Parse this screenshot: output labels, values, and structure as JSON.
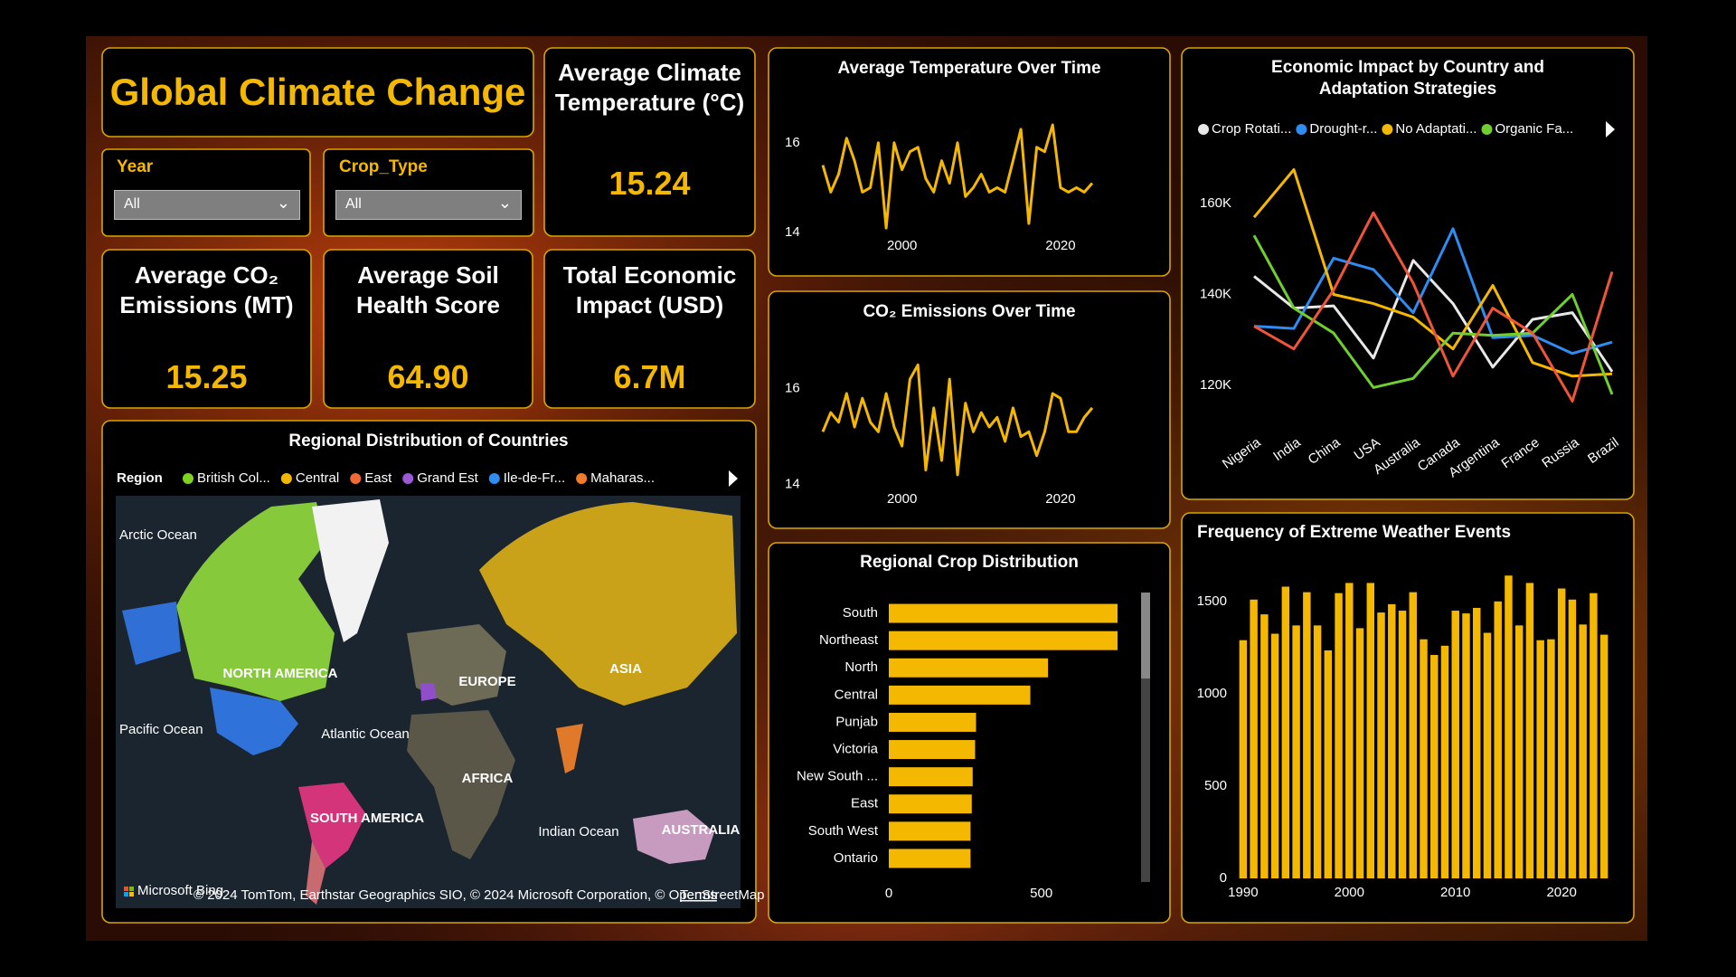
{
  "dashboard": {
    "title": "Global Climate Change",
    "slicers": [
      {
        "label": "Year",
        "value": "All"
      },
      {
        "label": "Crop_Type",
        "value": "All"
      }
    ],
    "cards": [
      {
        "title": "Average Climate Temperature (°C)",
        "value": "15.24"
      },
      {
        "title": "Average CO₂ Emissions (MT)",
        "value": "15.25"
      },
      {
        "title": "Average Soil Health Score",
        "value": "64.90"
      },
      {
        "title": "Total Economic Impact (USD)",
        "value": "6.7M"
      }
    ],
    "map": {
      "title": "Regional Distribution of Countries",
      "legend_title": "Region",
      "legend": [
        {
          "name": "British Col...",
          "color": "#7ed321"
        },
        {
          "name": "Central",
          "color": "#f5b800"
        },
        {
          "name": "East",
          "color": "#f06a35"
        },
        {
          "name": "Grand Est",
          "color": "#9b59d6"
        },
        {
          "name": "Ile-de-Fr...",
          "color": "#2f8cf0"
        },
        {
          "name": "Maharas...",
          "color": "#f07c2a"
        }
      ],
      "labels": [
        "Arctic Ocean",
        "NORTH AMERICA",
        "EUROPE",
        "ASIA",
        "Pacific Ocean",
        "Atlantic Ocean",
        "AFRICA",
        "SOUTH AMERICA",
        "Indian Ocean",
        "AUSTRALIA"
      ],
      "attribution": [
        "Microsoft Bing",
        "© 2024 TomTom, Earthstar Geographics SIO, © 2024 Microsoft Corporation, © OpenStreetMap",
        "Terms"
      ]
    }
  },
  "chart_data": [
    {
      "type": "line",
      "title": "Average Temperature Over Time",
      "x": [
        1990,
        1991,
        1992,
        1993,
        1994,
        1995,
        1996,
        1997,
        1998,
        1999,
        2000,
        2001,
        2002,
        2003,
        2004,
        2005,
        2006,
        2007,
        2008,
        2009,
        2010,
        2011,
        2012,
        2013,
        2014,
        2015,
        2016,
        2017,
        2018,
        2019,
        2020,
        2021,
        2022,
        2023,
        2024
      ],
      "series": [
        {
          "color": "#f5b800",
          "values": [
            15.5,
            14.9,
            15.3,
            16.1,
            15.6,
            14.9,
            15.0,
            16.0,
            14.1,
            16.0,
            15.4,
            15.8,
            15.9,
            15.2,
            14.9,
            15.6,
            15.1,
            16.0,
            14.8,
            15.0,
            15.3,
            14.9,
            15.0,
            14.9,
            15.6,
            16.3,
            14.2,
            15.9,
            15.8,
            16.4,
            15.0,
            14.9,
            15.0,
            14.9,
            15.1
          ]
        }
      ],
      "xlim": [
        1990,
        2024
      ],
      "ylim": [
        13.9,
        16.5
      ],
      "xticks": [
        2000,
        2020
      ],
      "yticks": [
        14,
        16
      ]
    },
    {
      "type": "line",
      "title": "CO₂ Emissions Over Time",
      "x": [
        1990,
        1991,
        1992,
        1993,
        1994,
        1995,
        1996,
        1997,
        1998,
        1999,
        2000,
        2001,
        2002,
        2003,
        2004,
        2005,
        2006,
        2007,
        2008,
        2009,
        2010,
        2011,
        2012,
        2013,
        2014,
        2015,
        2016,
        2017,
        2018,
        2019,
        2020,
        2021,
        2022,
        2023,
        2024
      ],
      "series": [
        {
          "color": "#f5b800",
          "values": [
            15.1,
            15.5,
            15.3,
            15.9,
            15.2,
            15.8,
            15.3,
            15.1,
            15.9,
            15.2,
            14.8,
            16.2,
            16.5,
            14.3,
            15.6,
            14.5,
            16.2,
            14.2,
            15.7,
            15.1,
            15.5,
            15.2,
            15.4,
            14.9,
            15.6,
            15.0,
            15.1,
            14.6,
            15.1,
            15.9,
            15.8,
            15.1,
            15.1,
            15.4,
            15.6
          ]
        }
      ],
      "xlim": [
        1990,
        2024
      ],
      "ylim": [
        13.8,
        16.6
      ],
      "xticks": [
        2000,
        2020
      ],
      "yticks": [
        14,
        16
      ]
    },
    {
      "type": "hbar",
      "title": "Regional Crop Distribution",
      "categories": [
        "South",
        "Northeast",
        "North",
        "Central",
        "Punjab",
        "Victoria",
        "New South ...",
        "East",
        "South West",
        "Ontario"
      ],
      "values": [
        750,
        750,
        522,
        464,
        286,
        283,
        275,
        272,
        268,
        268
      ],
      "color": "#f5b800",
      "xlim": [
        0,
        830
      ],
      "xticks": [
        0,
        500
      ]
    },
    {
      "type": "line",
      "title": "Economic Impact by Country and Adaptation Strategies",
      "categories": [
        "Nigeria",
        "India",
        "China",
        "USA",
        "Australia",
        "Canada",
        "Argentina",
        "France",
        "Russia",
        "Brazil"
      ],
      "series": [
        {
          "name": "Crop Rotati...",
          "color": "#e8e8e8",
          "values": [
            144000,
            137000,
            137500,
            126000,
            147500,
            138000,
            124000,
            134500,
            136000,
            123000
          ]
        },
        {
          "name": "Drought-r...",
          "color": "#2f8cf0",
          "values": [
            133000,
            132500,
            148000,
            145500,
            136000,
            154500,
            130500,
            131000,
            127000,
            129500
          ]
        },
        {
          "name": "No Adaptati...",
          "color": "#f5b800",
          "values": [
            157000,
            167500,
            140000,
            138000,
            135000,
            128000,
            142000,
            125000,
            122000,
            122500
          ]
        },
        {
          "name": "Organic Fa...",
          "color": "#6fcf2f",
          "values": [
            153000,
            137000,
            131500,
            119500,
            121500,
            131500,
            131000,
            131500,
            140000,
            118000
          ]
        },
        {
          "color": "#f0553a",
          "values": [
            133000,
            128000,
            141000,
            158000,
            142500,
            122000,
            137000,
            131500,
            116500,
            145000
          ]
        }
      ],
      "ylim": [
        112000,
        170000
      ],
      "yticks": [
        {
          "value": 120000,
          "label": "120K"
        },
        {
          "value": 140000,
          "label": "140K"
        },
        {
          "value": 160000,
          "label": "160K"
        }
      ],
      "legend": "top"
    },
    {
      "type": "bar",
      "title": "Frequency of Extreme Weather Events",
      "x": [
        1990,
        1991,
        1992,
        1993,
        1994,
        1995,
        1996,
        1997,
        1998,
        1999,
        2000,
        2001,
        2002,
        2003,
        2004,
        2005,
        2006,
        2007,
        2008,
        2009,
        2010,
        2011,
        2012,
        2013,
        2014,
        2015,
        2016,
        2017,
        2018,
        2019,
        2020,
        2021,
        2022,
        2023,
        2024
      ],
      "values": [
        1290,
        1510,
        1430,
        1325,
        1580,
        1370,
        1550,
        1370,
        1235,
        1545,
        1600,
        1355,
        1600,
        1440,
        1485,
        1450,
        1550,
        1295,
        1210,
        1260,
        1450,
        1435,
        1465,
        1330,
        1500,
        1640,
        1370,
        1600,
        1290,
        1295,
        1570,
        1510,
        1375,
        1545,
        1320
      ],
      "color": "#f5b800",
      "xlim": [
        1989.5,
        2024.5
      ],
      "xticks": [
        1990,
        2000,
        2010,
        2020
      ],
      "ylim": [
        0,
        1700
      ],
      "yticks": [
        0,
        500,
        1000,
        1500
      ]
    }
  ]
}
